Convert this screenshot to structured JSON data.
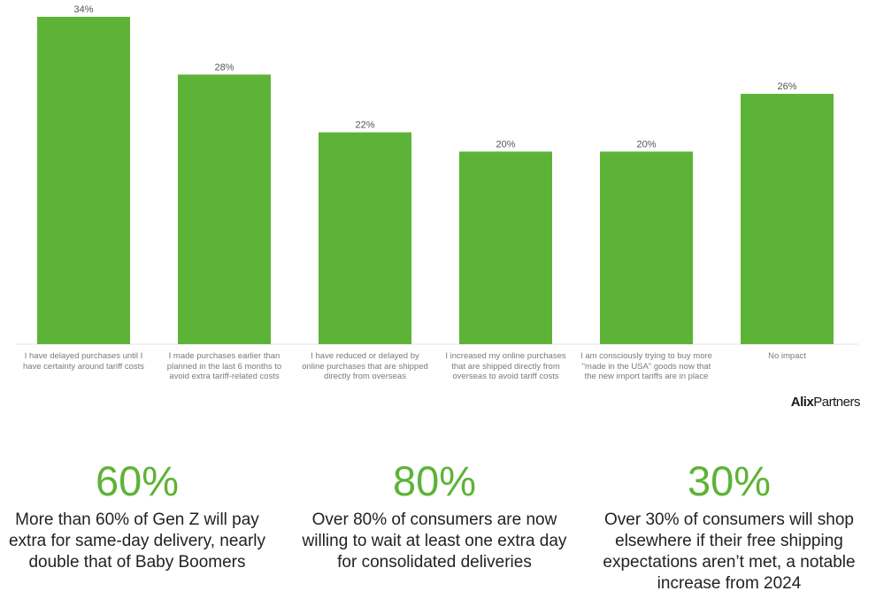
{
  "chart_data": {
    "type": "bar",
    "categories": [
      "I have delayed purchases until I have certainty around tariff costs",
      "I made purchases earlier than planned in the last 6 months to avoid extra tariff-related costs",
      "I have reduced or delayed by online purchases that are shipped directly from overseas",
      "I increased my online purchases that are shipped directly from overseas to avoid tariff costs",
      "I am consciously trying to buy more \"made in the USA\" goods now that the new import tariffs are in place",
      "No impact"
    ],
    "values": [
      34,
      28,
      22,
      20,
      20,
      26
    ],
    "value_labels": [
      "34%",
      "28%",
      "22%",
      "20%",
      "20%",
      "26%"
    ],
    "ylim": [
      0,
      34
    ],
    "grid": false,
    "color": "#5db337"
  },
  "brand": {
    "alix": "Alix",
    "partners": "Partners"
  },
  "stats": [
    {
      "number": "60%",
      "text": "More than 60% of Gen Z will pay extra for same-day delivery, nearly double that of Baby Boomers"
    },
    {
      "number": "80%",
      "text": "Over 80% of consumers are now willing to wait at least one extra day for consolidated deliveries"
    },
    {
      "number": "30%",
      "text": "Over 30% of consumers will shop elsewhere if their free shipping expectations aren’t met, a notable increase from 2024"
    }
  ]
}
